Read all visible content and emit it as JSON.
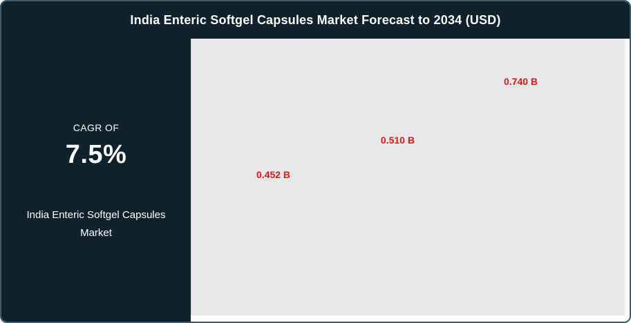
{
  "card": {
    "title": "India Enteric Softgel Capsules Market Forecast to 2034 (USD)"
  },
  "sidebar": {
    "cagr_label": "CAGR OF",
    "cagr_value": "7.5%",
    "market_name": "India Enteric Softgel Capsules Market"
  },
  "colors": {
    "panel_dark": "#0f222b",
    "chart_bg": "#e8e8ea",
    "label_red": "#e11512",
    "text_white": "#ffffff",
    "border": "#3e5a68"
  },
  "chart_data": {
    "type": "bar",
    "title": "India Enteric Softgel Capsules Market Forecast to 2034 (USD)",
    "unit": "USD Billions",
    "values": [
      0.452,
      0.51,
      0.74
    ],
    "data_labels": [
      "0.452 B",
      "0.510 B",
      "0.740 B"
    ],
    "label_color": "#e11512",
    "plot_background": "#e8e8ea",
    "label_positions_pct": [
      {
        "x": 18.9,
        "y": 49.1
      },
      {
        "x": 47.6,
        "y": 36.7
      },
      {
        "x": 76.0,
        "y": 15.5
      }
    ]
  }
}
